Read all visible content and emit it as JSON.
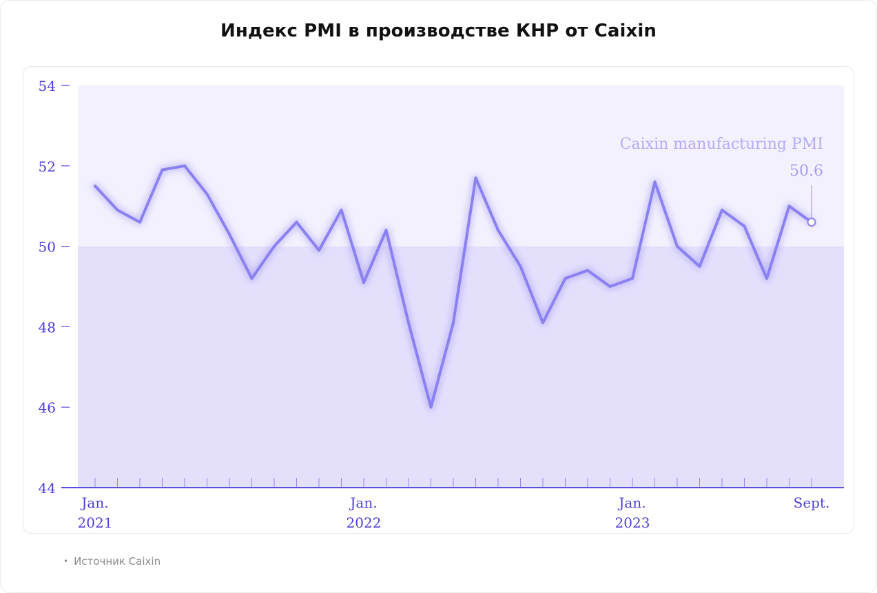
{
  "page": {
    "title": "Индекс PMI в производстве КНР от Caixin",
    "source_bullet": "•",
    "source": "Источник Caixin"
  },
  "chart_data": {
    "type": "line",
    "title": "Индекс PMI в производстве КНР от Caixin",
    "xlabel": "",
    "ylabel": "",
    "ylim": [
      44,
      54
    ],
    "yticks": [
      44,
      46,
      48,
      50,
      52,
      54
    ],
    "xlim": [
      "2021-01",
      "2023-09"
    ],
    "x_tick_labels": [
      {
        "month": "2021-01",
        "line1": "Jan.",
        "line2": "2021"
      },
      {
        "month": "2022-01",
        "line1": "Jan.",
        "line2": "2022"
      },
      {
        "month": "2023-01",
        "line1": "Jan.",
        "line2": "2023"
      },
      {
        "month": "2023-09",
        "line1": "Sept.",
        "line2": ""
      }
    ],
    "threshold": 50,
    "grid": false,
    "legend": "none",
    "series": [
      {
        "name": "Caixin manufacturing PMI",
        "color": "#8b80f0",
        "points": [
          {
            "month": "2021-01",
            "value": 51.5
          },
          {
            "month": "2021-02",
            "value": 50.9
          },
          {
            "month": "2021-03",
            "value": 50.6
          },
          {
            "month": "2021-04",
            "value": 51.9
          },
          {
            "month": "2021-05",
            "value": 52.0
          },
          {
            "month": "2021-06",
            "value": 51.3
          },
          {
            "month": "2021-07",
            "value": 50.3
          },
          {
            "month": "2021-08",
            "value": 49.2
          },
          {
            "month": "2021-09",
            "value": 50.0
          },
          {
            "month": "2021-10",
            "value": 50.6
          },
          {
            "month": "2021-11",
            "value": 49.9
          },
          {
            "month": "2021-12",
            "value": 50.9
          },
          {
            "month": "2022-01",
            "value": 49.1
          },
          {
            "month": "2022-02",
            "value": 50.4
          },
          {
            "month": "2022-03",
            "value": 48.1
          },
          {
            "month": "2022-04",
            "value": 46.0
          },
          {
            "month": "2022-05",
            "value": 48.1
          },
          {
            "month": "2022-06",
            "value": 51.7
          },
          {
            "month": "2022-07",
            "value": 50.4
          },
          {
            "month": "2022-08",
            "value": 49.5
          },
          {
            "month": "2022-09",
            "value": 48.1
          },
          {
            "month": "2022-10",
            "value": 49.2
          },
          {
            "month": "2022-11",
            "value": 49.4
          },
          {
            "month": "2022-12",
            "value": 49.0
          },
          {
            "month": "2023-01",
            "value": 49.2
          },
          {
            "month": "2023-02",
            "value": 51.6
          },
          {
            "month": "2023-03",
            "value": 50.0
          },
          {
            "month": "2023-04",
            "value": 49.5
          },
          {
            "month": "2023-05",
            "value": 50.9
          },
          {
            "month": "2023-06",
            "value": 50.5
          },
          {
            "month": "2023-07",
            "value": 49.2
          },
          {
            "month": "2023-08",
            "value": 51.0
          },
          {
            "month": "2023-09",
            "value": 50.6
          }
        ]
      }
    ],
    "annotation": {
      "label": "Caixin manufacturing PMI",
      "value_label": "50.6",
      "month": "2023-09"
    },
    "colors": {
      "line": "#8b80f0",
      "upper_band": "#f3f1fe",
      "lower_band": "#e4e0fc",
      "axis": "#5a4fe0",
      "tick_text": "#4b3fd6",
      "annotation_text": "#b3acf5",
      "annotation_value": "#a79ff3"
    }
  }
}
